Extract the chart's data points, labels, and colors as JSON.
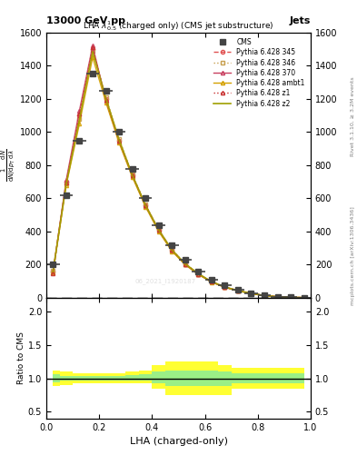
{
  "title_top": "13000 GeV pp",
  "title_right": "Jets",
  "plot_title": "LHA $\\lambda^{1}_{0.5}$ (charged only) (CMS jet substructure)",
  "xlabel": "LHA (charged-only)",
  "ylabel_main": "1 / mathrm dN / mathrm d p_mathrm T mathrm d lambda",
  "ylabel_ratio": "Ratio to CMS",
  "rivet_label": "Rivet 3.1.10, ≥ 3.2M events",
  "arxiv_label": "mcplots.cern.ch [arXiv:1306.3436]",
  "watermark": "06_2021_I1920187",
  "x": [
    0.025,
    0.075,
    0.125,
    0.175,
    0.225,
    0.275,
    0.325,
    0.375,
    0.425,
    0.475,
    0.525,
    0.575,
    0.625,
    0.675,
    0.725,
    0.775,
    0.825,
    0.875,
    0.925,
    0.975
  ],
  "cms_data": [
    200,
    620,
    950,
    1350,
    1250,
    1000,
    780,
    600,
    440,
    320,
    230,
    160,
    110,
    75,
    50,
    30,
    15,
    8,
    4,
    2
  ],
  "cms_xerr": [
    0.025,
    0.025,
    0.025,
    0.025,
    0.025,
    0.025,
    0.025,
    0.025,
    0.025,
    0.025,
    0.025,
    0.025,
    0.025,
    0.025,
    0.025,
    0.025,
    0.025,
    0.025,
    0.025,
    0.025
  ],
  "p345": [
    160,
    700,
    1100,
    1500,
    1200,
    950,
    740,
    560,
    410,
    290,
    205,
    145,
    98,
    66,
    44,
    27,
    14,
    7,
    3.5,
    1.8
  ],
  "p346": [
    165,
    690,
    1080,
    1490,
    1210,
    960,
    745,
    563,
    412,
    292,
    207,
    147,
    99,
    67,
    45,
    28,
    14.5,
    7.2,
    3.6,
    1.9
  ],
  "p370": [
    155,
    710,
    1130,
    1520,
    1190,
    942,
    735,
    555,
    405,
    285,
    202,
    142,
    96,
    64,
    43,
    26,
    13.5,
    6.8,
    3.4,
    1.75
  ],
  "pambt1": [
    155,
    680,
    1050,
    1450,
    1180,
    935,
    730,
    550,
    400,
    282,
    200,
    141,
    95,
    64,
    42,
    26,
    13,
    6.5,
    3.2,
    1.6
  ],
  "pz1": [
    150,
    695,
    1110,
    1510,
    1195,
    945,
    738,
    558,
    408,
    288,
    204,
    144,
    97,
    65,
    43,
    27,
    13.8,
    6.9,
    3.45,
    1.78
  ],
  "pz2": [
    158,
    688,
    1075,
    1485,
    1205,
    954,
    742,
    560,
    410,
    290,
    206,
    146,
    98,
    66,
    44,
    27.5,
    14.2,
    7.1,
    3.55,
    1.85
  ],
  "ratio_yellow_lo": [
    0.88,
    0.9,
    0.92,
    0.93,
    0.93,
    0.93,
    0.93,
    0.93,
    0.85,
    0.75,
    0.75,
    0.75,
    0.75,
    0.75,
    0.85,
    0.85,
    0.85,
    0.85,
    0.85,
    0.85
  ],
  "ratio_yellow_hi": [
    1.12,
    1.1,
    1.08,
    1.07,
    1.08,
    1.08,
    1.1,
    1.12,
    1.2,
    1.25,
    1.25,
    1.25,
    1.25,
    1.2,
    1.15,
    1.15,
    1.15,
    1.15,
    1.15,
    1.15
  ],
  "ratio_green_lo": [
    0.94,
    0.96,
    0.97,
    0.97,
    0.97,
    0.97,
    0.97,
    0.97,
    0.93,
    0.88,
    0.88,
    0.88,
    0.88,
    0.88,
    0.93,
    0.93,
    0.93,
    0.93,
    0.93,
    0.93
  ],
  "ratio_green_hi": [
    1.06,
    1.04,
    1.03,
    1.03,
    1.04,
    1.04,
    1.05,
    1.06,
    1.1,
    1.12,
    1.12,
    1.12,
    1.12,
    1.1,
    1.07,
    1.07,
    1.07,
    1.07,
    1.07,
    1.07
  ],
  "color_345": "#e05050",
  "color_346": "#c8a050",
  "color_370": "#c84060",
  "color_ambt1": "#d4a000",
  "color_z1": "#c83030",
  "color_z2": "#a0a000",
  "color_cms": "#444444",
  "ylim_main": [
    0,
    1600
  ],
  "ylim_ratio": [
    0.4,
    2.2
  ],
  "yticks_main": [
    0,
    200,
    400,
    600,
    800,
    1000,
    1200,
    1400,
    1600
  ],
  "yticks_ratio": [
    0.5,
    1.0,
    1.5,
    2.0
  ]
}
